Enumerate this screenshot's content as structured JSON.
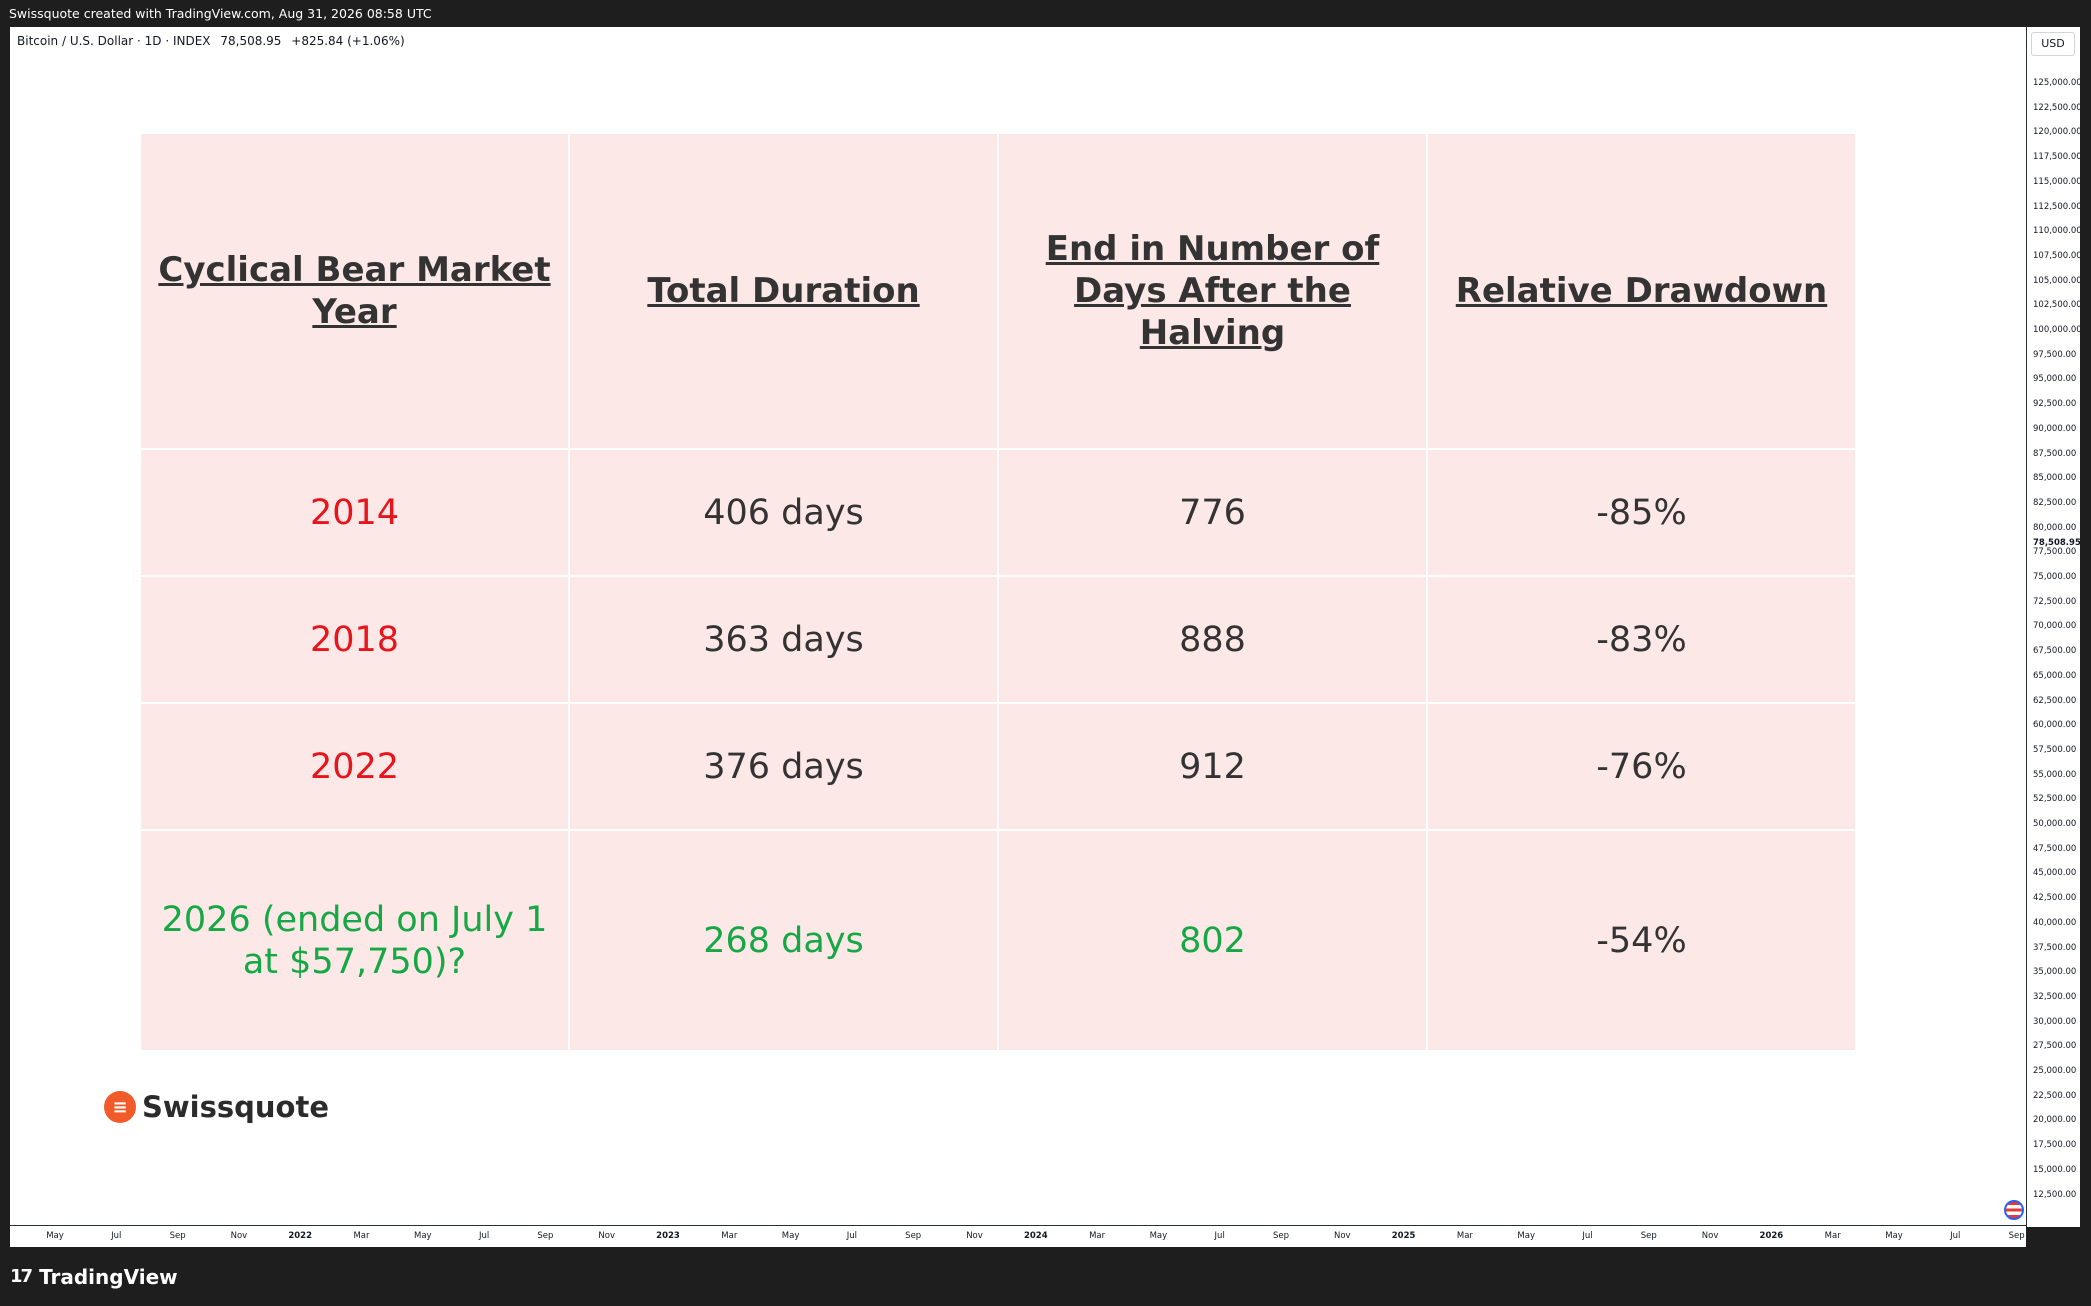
{
  "header": {
    "caption": "Swissquote created with TradingView.com, Aug 31, 2026 08:58 UTC"
  },
  "symbol": {
    "name": "Bitcoin / U.S. Dollar · 1D · INDEX",
    "price": "78,508.95",
    "change": "+825.84 (+1.06%)"
  },
  "price_axis": {
    "currency": "USD",
    "current_price_label": "78,508.95",
    "ticks": [
      "125,000.00",
      "122,500.00",
      "120,000.00",
      "117,500.00",
      "115,000.00",
      "112,500.00",
      "110,000.00",
      "107,500.00",
      "105,000.00",
      "102,500.00",
      "100,000.00",
      "97,500.00",
      "95,000.00",
      "92,500.00",
      "90,000.00",
      "87,500.00",
      "85,000.00",
      "82,500.00",
      "80,000.00",
      "77,500.00",
      "75,000.00",
      "72,500.00",
      "70,000.00",
      "67,500.00",
      "65,000.00",
      "62,500.00",
      "60,000.00",
      "57,500.00",
      "55,000.00",
      "52,500.00",
      "50,000.00",
      "47,500.00",
      "45,000.00",
      "42,500.00",
      "40,000.00",
      "37,500.00",
      "35,000.00",
      "32,500.00",
      "30,000.00",
      "27,500.00",
      "25,000.00",
      "22,500.00",
      "20,000.00",
      "17,500.00",
      "15,000.00",
      "12,500.00"
    ]
  },
  "time_axis": {
    "labels": [
      "May",
      "Jul",
      "Sep",
      "Nov",
      "2022",
      "Mar",
      "May",
      "Jul",
      "Sep",
      "Nov",
      "2023",
      "Mar",
      "May",
      "Jul",
      "Sep",
      "Nov",
      "2024",
      "Mar",
      "May",
      "Jul",
      "Sep",
      "Nov",
      "2025",
      "Mar",
      "May",
      "Jul",
      "Sep",
      "Nov",
      "2026",
      "Mar",
      "May",
      "Jul",
      "Sep"
    ]
  },
  "table": {
    "headers": [
      "Cyclical Bear Market Year",
      "Total Duration",
      "End in Number of Days After the Halving",
      "Relative Drawdown"
    ],
    "rows": [
      [
        "2014",
        "406 days",
        "776",
        "-85%"
      ],
      [
        "2018",
        "363 days",
        "888",
        "-83%"
      ],
      [
        "2022",
        "376 days",
        "912",
        "-76%"
      ],
      [
        "2026 (ended on July 1 at $57,750)?",
        "268 days",
        "802",
        "-54%"
      ]
    ],
    "colors": {
      "year": "#e8141b",
      "current": "#17a846",
      "text": "#333333",
      "background": "#fde8e8"
    }
  },
  "logo": {
    "text": "Swissquote",
    "color": "#f15a29"
  },
  "footer": {
    "brand": "TradingView",
    "icon": "tradingview-logo-icon"
  }
}
